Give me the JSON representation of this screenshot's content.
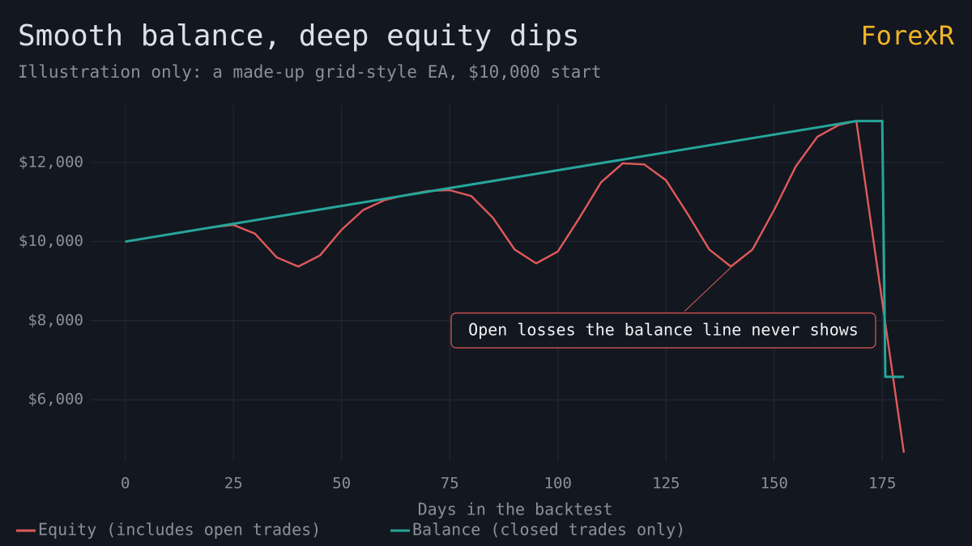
{
  "brand": "ForexR",
  "chart_data": {
    "type": "line",
    "title": "Smooth balance, deep equity dips",
    "subtitle": "Illustration only: a made-up grid-style EA, $10,000 start",
    "x_label": "Days in the backtest",
    "annotation": "Open losses the balance line never shows",
    "xlim": [
      -8,
      189
    ],
    "ylim": [
      4450,
      13450
    ],
    "xticks": [
      0,
      25,
      50,
      75,
      100,
      125,
      150,
      175
    ],
    "yticks": [
      {
        "value": 6000,
        "label": "$6,000"
      },
      {
        "value": 8000,
        "label": "$8,000"
      },
      {
        "value": 10000,
        "label": "$10,000"
      },
      {
        "value": 12000,
        "label": "$12,000"
      }
    ],
    "grid": true,
    "series": [
      {
        "name": "Equity (includes open trades)",
        "color": "#e05a5a",
        "x": [
          0,
          5,
          10,
          15,
          20,
          25,
          30,
          35,
          40,
          45,
          50,
          55,
          60,
          65,
          70,
          75,
          80,
          85,
          90,
          95,
          100,
          105,
          110,
          115,
          120,
          125,
          130,
          135,
          140,
          145,
          150,
          155,
          160,
          165,
          169,
          180
        ],
        "values": [
          10000,
          10090,
          10180,
          10270,
          10360,
          10420,
          10200,
          9600,
          9370,
          9650,
          10300,
          10800,
          11050,
          11180,
          11280,
          11300,
          11150,
          10600,
          9800,
          9450,
          9750,
          10600,
          11500,
          11980,
          11950,
          11550,
          10700,
          9800,
          9370,
          9800,
          10800,
          11900,
          12650,
          12950,
          13050,
          4660
        ]
      },
      {
        "name": "Balance (closed trades only)",
        "color": "#26a69a",
        "x": [
          0,
          169,
          175,
          175.7,
          180
        ],
        "values": [
          10000,
          13050,
          13050,
          6580,
          6580
        ]
      }
    ]
  }
}
